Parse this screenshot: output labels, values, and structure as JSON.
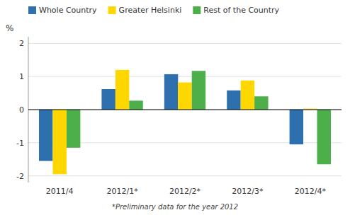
{
  "chart_data": {
    "type": "bar",
    "y_label": "%",
    "categories": [
      "2011/4",
      "2012/1*",
      "2012/2*",
      "2012/3*",
      "2012/4*"
    ],
    "series": [
      {
        "name": "Whole Country",
        "color": "#2E6FAD",
        "values": [
          -1.55,
          0.62,
          1.07,
          0.58,
          -1.05
        ]
      },
      {
        "name": "Greater Helsinki",
        "color": "#FFD700",
        "values": [
          -1.95,
          1.2,
          0.82,
          0.88,
          0.03
        ]
      },
      {
        "name": "Rest of the Country",
        "color": "#4DAF4A",
        "values": [
          -1.15,
          0.27,
          1.17,
          0.4,
          -1.65
        ]
      }
    ],
    "ylim": [
      -2.2,
      2.2
    ],
    "yticks": [
      -2,
      -1,
      0,
      1,
      2
    ],
    "grid": true,
    "legend": "top",
    "annotations": [
      "*Preliminary data for the year 2012"
    ]
  }
}
